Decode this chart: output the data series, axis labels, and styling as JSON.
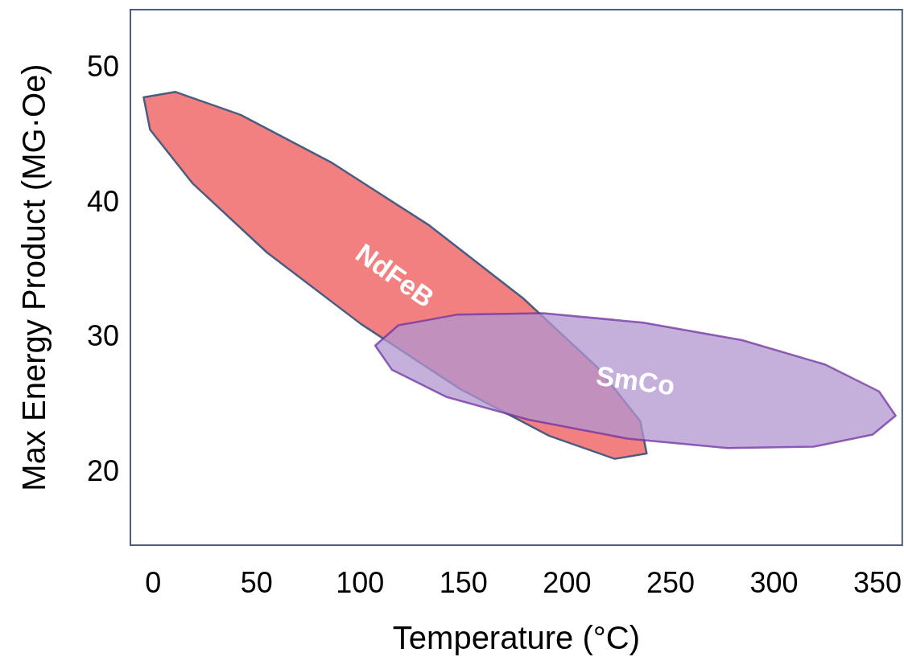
{
  "chart_data": {
    "type": "area",
    "xlabel": "Temperature (°C)",
    "ylabel": "Max Energy Product (MG·Oe)",
    "xlim": [
      -11,
      362
    ],
    "ylim": [
      14.5,
      54.2
    ],
    "xticks": [
      0,
      50,
      100,
      150,
      200,
      250,
      300,
      350
    ],
    "yticks": [
      20,
      30,
      40,
      50
    ],
    "series": [
      {
        "name": "NdFeB",
        "color": "#f28080",
        "x": [
          238.5,
          223.1,
          191.5,
          148.1,
          100.4,
          55.0,
          19.2,
          -1.5,
          -4.6,
          10.8,
          42.3,
          85.8,
          133.5,
          178.8,
          214.6,
          235.4
        ],
        "values": [
          21.3,
          20.9,
          22.6,
          26.1,
          30.9,
          36.2,
          41.3,
          45.3,
          47.7,
          48.1,
          46.4,
          42.9,
          38.2,
          32.8,
          27.7,
          23.7
        ]
      },
      {
        "name": "SmCo",
        "color": "#b295d0",
        "x": [
          358.8,
          347.7,
          319.2,
          277.7,
          229.2,
          181.5,
          141.5,
          115.4,
          107.3,
          118.5,
          147.1,
          188.5,
          236.9,
          284.6,
          324.6,
          350.8
        ],
        "values": [
          24.1,
          22.7,
          21.8,
          21.7,
          22.4,
          23.8,
          25.5,
          27.5,
          29.3,
          30.8,
          31.6,
          31.7,
          31.0,
          29.7,
          27.9,
          25.9
        ]
      }
    ]
  }
}
